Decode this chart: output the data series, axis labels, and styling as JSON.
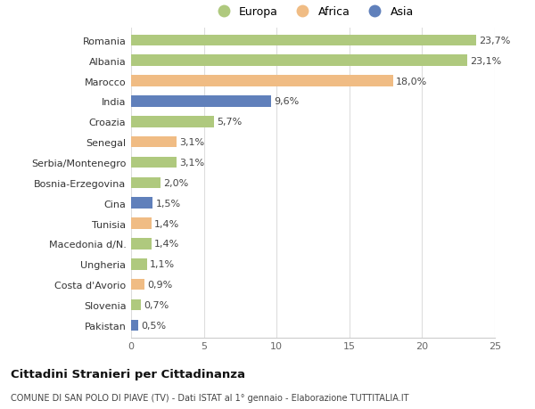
{
  "countries": [
    "Romania",
    "Albania",
    "Marocco",
    "India",
    "Croazia",
    "Senegal",
    "Serbia/Montenegro",
    "Bosnia-Erzegovina",
    "Cina",
    "Tunisia",
    "Macedonia d/N.",
    "Ungheria",
    "Costa d'Avorio",
    "Slovenia",
    "Pakistan"
  ],
  "values": [
    23.7,
    23.1,
    18.0,
    9.6,
    5.7,
    3.1,
    3.1,
    2.0,
    1.5,
    1.4,
    1.4,
    1.1,
    0.9,
    0.7,
    0.5
  ],
  "labels": [
    "23,7%",
    "23,1%",
    "18,0%",
    "9,6%",
    "5,7%",
    "3,1%",
    "3,1%",
    "2,0%",
    "1,5%",
    "1,4%",
    "1,4%",
    "1,1%",
    "0,9%",
    "0,7%",
    "0,5%"
  ],
  "continents": [
    "Europa",
    "Europa",
    "Africa",
    "Asia",
    "Europa",
    "Africa",
    "Europa",
    "Europa",
    "Asia",
    "Africa",
    "Europa",
    "Europa",
    "Africa",
    "Europa",
    "Asia"
  ],
  "colors": {
    "Europa": "#afc97e",
    "Africa": "#f0bc84",
    "Asia": "#6080bb"
  },
  "xlim": [
    0,
    25
  ],
  "xticks": [
    0,
    5,
    10,
    15,
    20,
    25
  ],
  "title": "Cittadini Stranieri per Cittadinanza",
  "subtitle": "COMUNE DI SAN POLO DI PIAVE (TV) - Dati ISTAT al 1° gennaio - Elaborazione TUTTITALIA.IT",
  "background_color": "#ffffff",
  "grid_color": "#dddddd",
  "bar_height": 0.55,
  "label_fontsize": 8,
  "ytick_fontsize": 8,
  "xtick_fontsize": 8
}
